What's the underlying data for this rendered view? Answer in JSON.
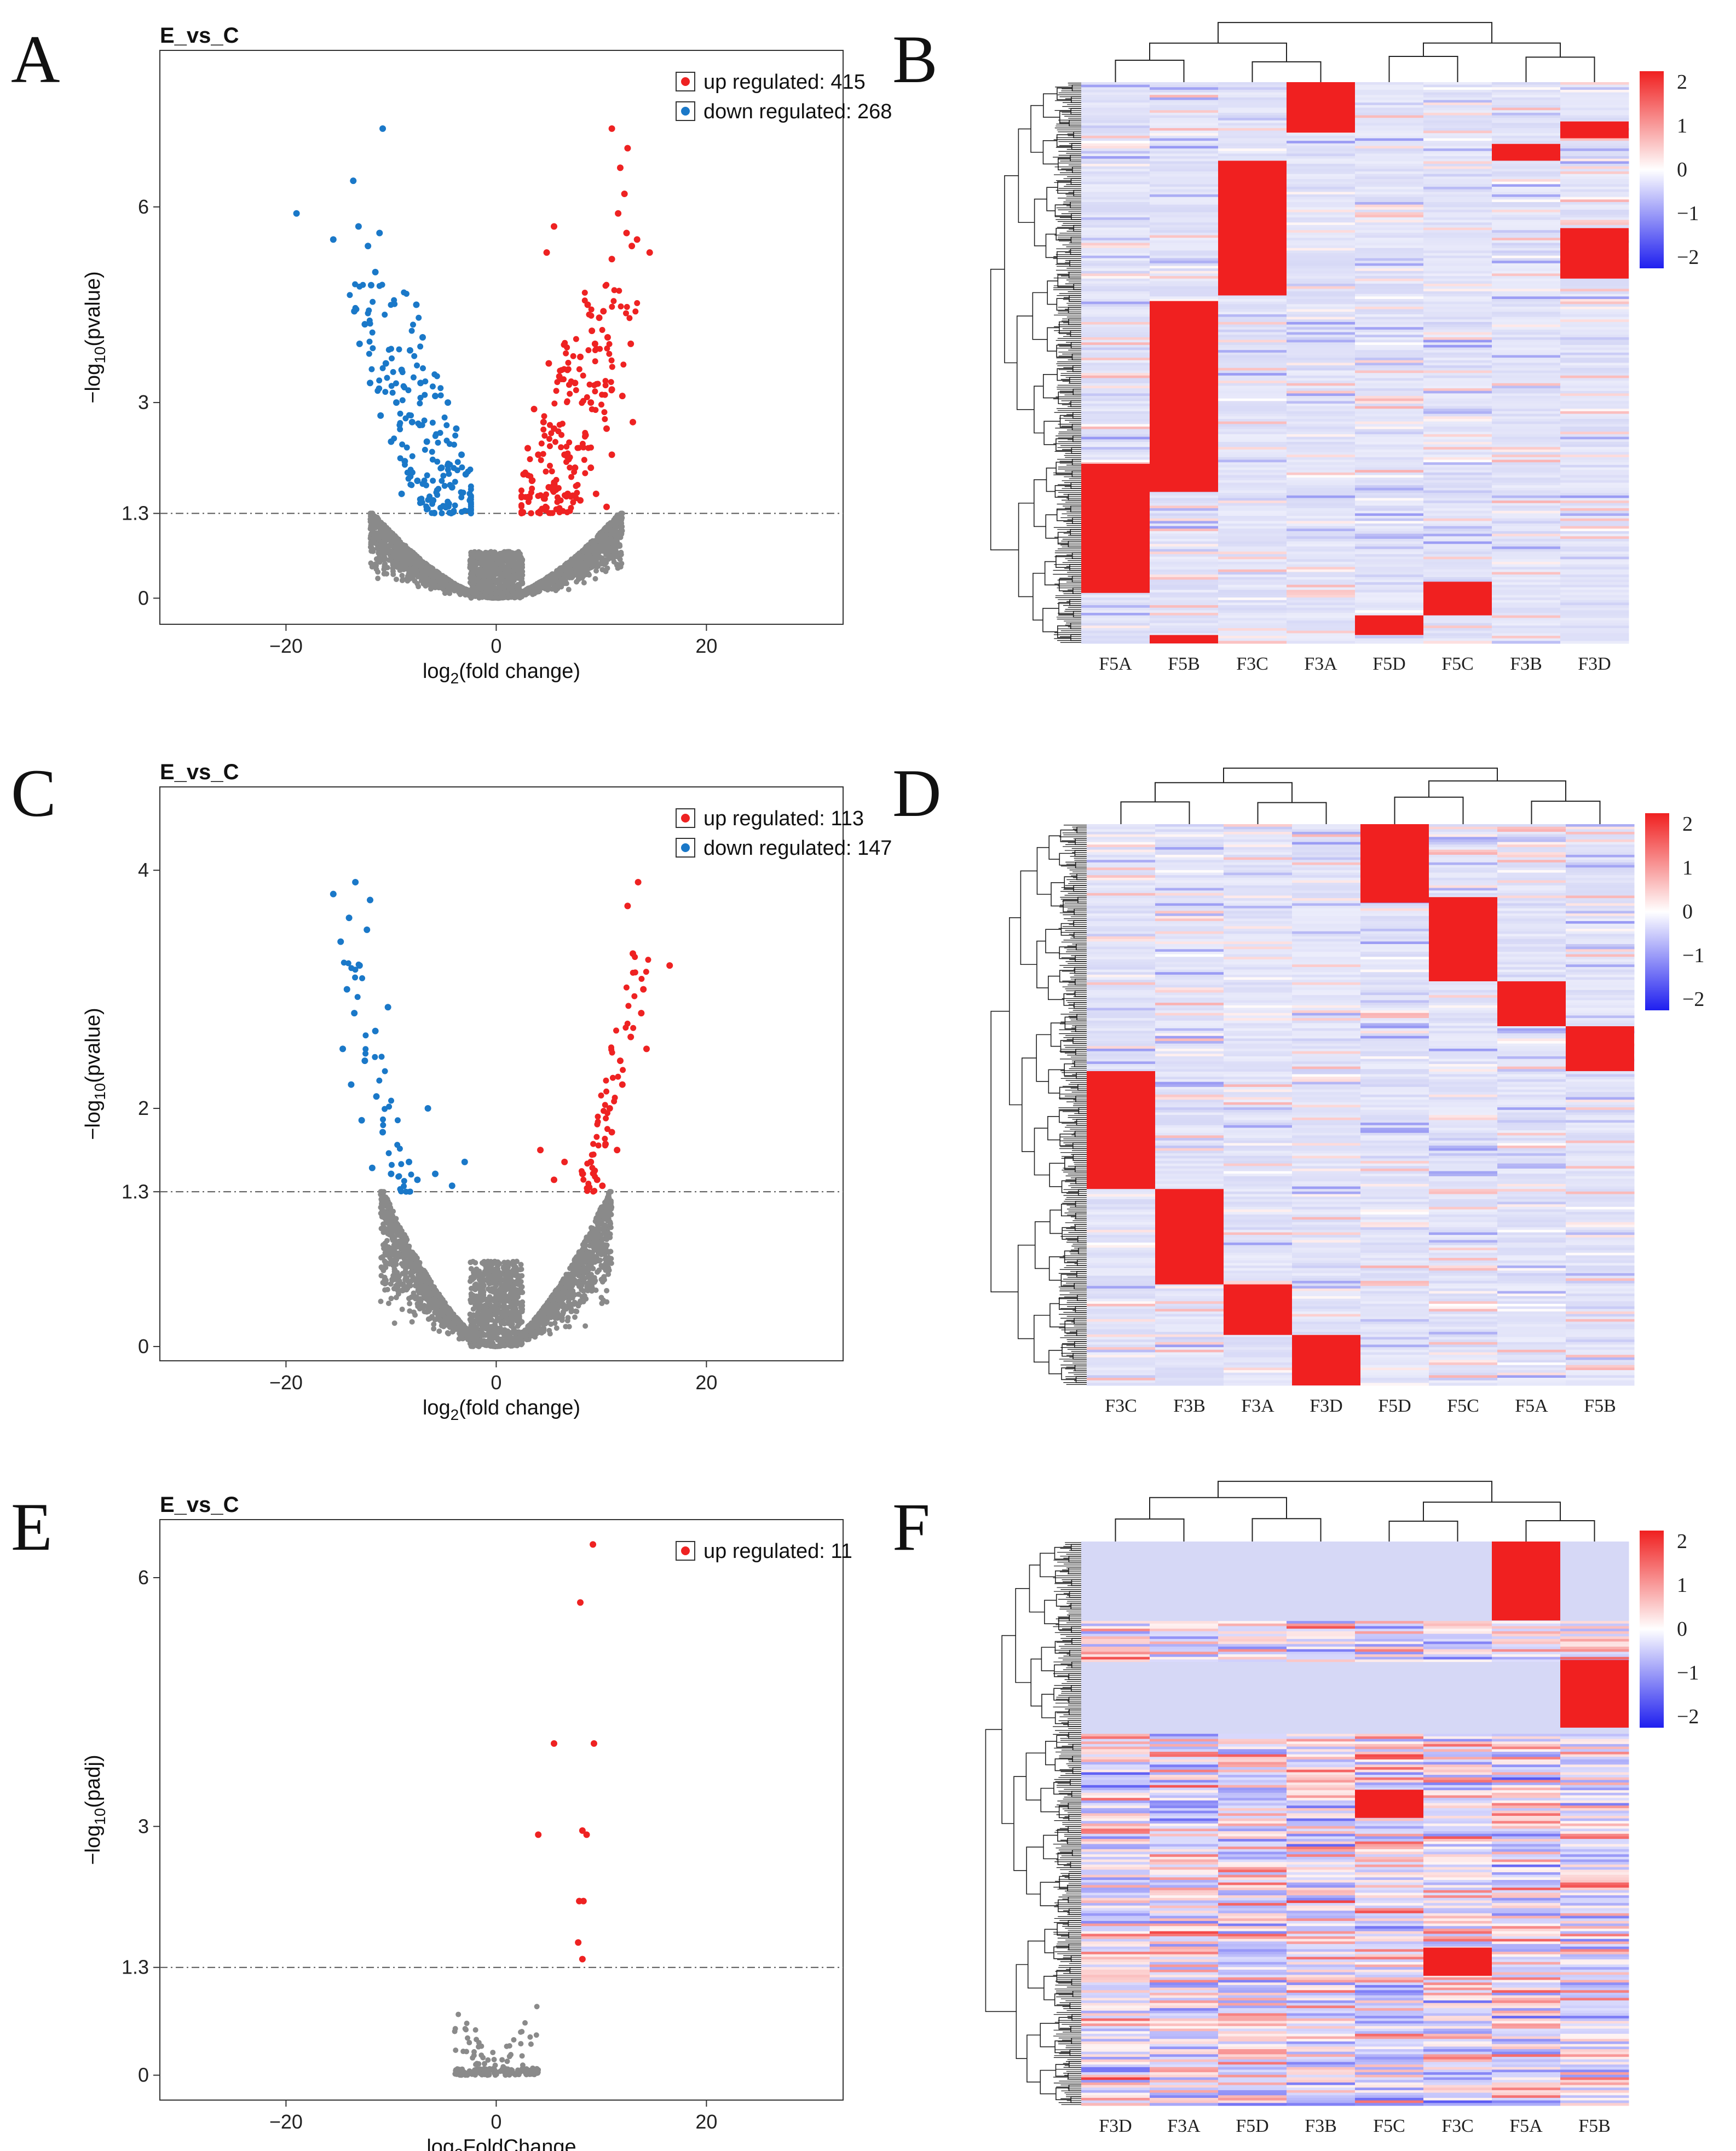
{
  "figure": {
    "panel_letters": [
      "A",
      "B",
      "C",
      "D",
      "E",
      "F"
    ]
  },
  "colors": {
    "up": "#ee2222",
    "down": "#1a78c8",
    "ns": "#8a8a8a",
    "heat_low": "#1f1fef",
    "heat_mid": "#ffffff",
    "heat_high": "#f02020",
    "heat_base": "#d6d8f6"
  },
  "chart_data": [
    {
      "panel": "A",
      "type": "scatter",
      "subtype": "volcano",
      "title": "E_vs_C",
      "xlabel_main": "log",
      "xlabel_sub": "2",
      "xlabel_rest": "(fold change)",
      "ylabel_main": "−log",
      "ylabel_sub": "10",
      "ylabel_rest": "(pvalue)",
      "xlim": [
        -32,
        33
      ],
      "ylim": [
        -0.4,
        8.4
      ],
      "xticks": [
        -20,
        0,
        20
      ],
      "xtick_labels": [
        "−20",
        "0",
        "20"
      ],
      "yticks": [
        0,
        1.3,
        3,
        6
      ],
      "ytick_labels": [
        "0",
        "1.3",
        "3",
        "6"
      ],
      "threshold": 1.3,
      "legend": [
        {
          "label": "up regulated: 415",
          "color": "#ee2222"
        },
        {
          "label": "down regulated: 268",
          "color": "#1a78c8"
        }
      ],
      "sig_points": {
        "up": [
          [
            11,
            7.2
          ],
          [
            12.5,
            6.9
          ],
          [
            11.8,
            6.6
          ],
          [
            12.2,
            6.2
          ],
          [
            11.6,
            5.9
          ],
          [
            5.5,
            5.7
          ],
          [
            12.4,
            5.6
          ],
          [
            13.4,
            5.5
          ],
          [
            12.9,
            5.4
          ],
          [
            14.6,
            5.3
          ],
          [
            11,
            5.2
          ],
          [
            4.8,
            5.3
          ],
          [
            8.7,
            4.5
          ],
          [
            10.2,
            4.4
          ],
          [
            9.8,
            4.3
          ],
          [
            9.1,
            4.1
          ],
          [
            10.6,
            4.0
          ],
          [
            9.4,
            3.9
          ],
          [
            12.8,
            3.9
          ],
          [
            8,
            3.7
          ],
          [
            5,
            3.6
          ],
          [
            6,
            3.4
          ],
          [
            7.5,
            3.3
          ],
          [
            11,
            3.2
          ],
          [
            9,
            3.0
          ],
          [
            12,
            3.1
          ],
          [
            3.6,
            2.9
          ],
          [
            4.5,
            2.7
          ],
          [
            5.5,
            2.6
          ],
          [
            8.5,
            2.5
          ],
          [
            10.5,
            2.6
          ],
          [
            13,
            2.7
          ],
          [
            3,
            2.3
          ],
          [
            4,
            2.2
          ],
          [
            6.5,
            2.2
          ],
          [
            7.5,
            2.0
          ],
          [
            9,
            2.0
          ],
          [
            11,
            2.2
          ],
          [
            2.6,
            1.9
          ],
          [
            3.4,
            1.8
          ],
          [
            5,
            1.7
          ],
          [
            6.8,
            1.6
          ],
          [
            8,
            1.5
          ],
          [
            9.5,
            1.6
          ],
          [
            10.5,
            1.4
          ]
        ],
        "down": [
          [
            -10.8,
            7.2
          ],
          [
            -19,
            5.9
          ],
          [
            -13.6,
            6.4
          ],
          [
            -13.1,
            5.7
          ],
          [
            -15.5,
            5.5
          ],
          [
            -11.1,
            5.6
          ],
          [
            -12.2,
            5.4
          ],
          [
            -11.5,
            5.0
          ],
          [
            -11.9,
            4.8
          ],
          [
            -7.6,
            4.5
          ],
          [
            -13.5,
            4.4
          ],
          [
            -12.5,
            4.2
          ],
          [
            -7,
            4.0
          ],
          [
            -13,
            3.9
          ],
          [
            -8.2,
            3.8
          ],
          [
            -10.5,
            3.6
          ],
          [
            -9,
            3.5
          ],
          [
            -12,
            3.3
          ],
          [
            -7.2,
            3.3
          ],
          [
            -5.8,
            3.1
          ],
          [
            -9.5,
            3.0
          ],
          [
            -4.6,
            3.0
          ],
          [
            -11,
            2.8
          ],
          [
            -8,
            2.7
          ],
          [
            -3.8,
            2.6
          ],
          [
            -10,
            2.4
          ],
          [
            -6.6,
            2.4
          ],
          [
            -3.3,
            2.2
          ],
          [
            -8.7,
            2.1
          ],
          [
            -5.2,
            2.0
          ],
          [
            -2.9,
            1.9
          ],
          [
            -7.5,
            1.8
          ],
          [
            -4.2,
            1.7
          ],
          [
            -9,
            1.6
          ],
          [
            -6,
            1.5
          ],
          [
            -2.5,
            1.5
          ]
        ]
      },
      "ns_shape": {
        "xmax": 12,
        "ymax": 1.3
      }
    },
    {
      "panel": "B",
      "type": "heatmap",
      "columns": [
        "F5A",
        "F5B",
        "F3C",
        "F3A",
        "F5D",
        "F5C",
        "F3B",
        "F3D"
      ],
      "colorbar_ticks": [
        2,
        1,
        0,
        -1,
        -2
      ],
      "colorbar_labels": [
        "2",
        "1",
        "0",
        "−1",
        "−2"
      ],
      "blocks": [
        {
          "col": 3,
          "y0": 0.0,
          "y1": 0.09
        },
        {
          "col": 6,
          "y0": 0.11,
          "y1": 0.14
        },
        {
          "col": 7,
          "y0": 0.07,
          "y1": 0.1
        },
        {
          "col": 2,
          "y0": 0.14,
          "y1": 0.38
        },
        {
          "col": 7,
          "y0": 0.26,
          "y1": 0.35
        },
        {
          "col": 1,
          "y0": 0.39,
          "y1": 0.73
        },
        {
          "col": 0,
          "y0": 0.68,
          "y1": 0.91
        },
        {
          "col": 5,
          "y0": 0.89,
          "y1": 0.95
        },
        {
          "col": 4,
          "y0": 0.95,
          "y1": 0.985
        },
        {
          "col": 1,
          "y0": 0.985,
          "y1": 1.0
        }
      ]
    },
    {
      "panel": "C",
      "type": "scatter",
      "subtype": "volcano",
      "title": "E_vs_C",
      "xlabel_main": "log",
      "xlabel_sub": "2",
      "xlabel_rest": "(fold change)",
      "ylabel_main": "−log",
      "ylabel_sub": "10",
      "ylabel_rest": "(pvalue)",
      "xlim": [
        -32,
        33
      ],
      "ylim": [
        -0.12,
        4.7
      ],
      "xticks": [
        -20,
        0,
        20
      ],
      "xtick_labels": [
        "−20",
        "0",
        "20"
      ],
      "yticks": [
        0,
        1.3,
        2,
        4
      ],
      "ytick_labels": [
        "0",
        "1.3",
        "2",
        "4"
      ],
      "threshold": 1.3,
      "legend": [
        {
          "label": "up regulated: 113",
          "color": "#ee2222"
        },
        {
          "label": "down regulated: 147",
          "color": "#1a78c8"
        }
      ],
      "sig_points": {
        "up": [
          [
            13.5,
            3.9
          ],
          [
            12.5,
            3.7
          ],
          [
            16.5,
            3.2
          ],
          [
            13,
            3.3
          ],
          [
            14,
            3.0
          ],
          [
            13.8,
            2.8
          ],
          [
            12.8,
            2.6
          ],
          [
            14.3,
            2.5
          ],
          [
            11.8,
            2.4
          ],
          [
            12,
            2.2
          ],
          [
            10.8,
            2.0
          ],
          [
            11,
            1.8
          ],
          [
            10.4,
            1.7
          ],
          [
            11.5,
            1.65
          ],
          [
            4.2,
            1.65
          ],
          [
            6.5,
            1.55
          ],
          [
            9,
            1.55
          ],
          [
            8.2,
            1.45
          ],
          [
            5.5,
            1.4
          ],
          [
            9.6,
            1.4
          ],
          [
            10.1,
            1.35
          ]
        ],
        "down": [
          [
            -13.4,
            3.9
          ],
          [
            -15.5,
            3.8
          ],
          [
            -12,
            3.75
          ],
          [
            -14,
            3.6
          ],
          [
            -12.3,
            3.5
          ],
          [
            -14.8,
            3.4
          ],
          [
            -13,
            3.2
          ],
          [
            -14.2,
            3.0
          ],
          [
            -10.3,
            2.85
          ],
          [
            -13.5,
            2.8
          ],
          [
            -11.5,
            2.65
          ],
          [
            -14.6,
            2.5
          ],
          [
            -12.5,
            2.4
          ],
          [
            -13.8,
            2.2
          ],
          [
            -11.4,
            2.1
          ],
          [
            -6.5,
            2.0
          ],
          [
            -12.8,
            1.9
          ],
          [
            -10.8,
            1.8
          ],
          [
            -8.3,
            1.55
          ],
          [
            -3,
            1.55
          ],
          [
            -11.8,
            1.5
          ],
          [
            -10,
            1.45
          ],
          [
            -5.8,
            1.45
          ],
          [
            -7.5,
            1.4
          ],
          [
            -4.2,
            1.35
          ]
        ]
      },
      "ns_shape": {
        "xmax": 11,
        "ymax": 1.3
      }
    },
    {
      "panel": "D",
      "type": "heatmap",
      "columns": [
        "F3C",
        "F3B",
        "F3A",
        "F3D",
        "F5D",
        "F5C",
        "F5A",
        "F5B"
      ],
      "colorbar_ticks": [
        2,
        1,
        0,
        -1,
        -2
      ],
      "colorbar_labels": [
        "2",
        "1",
        "0",
        "−1",
        "−2"
      ],
      "blocks": [
        {
          "col": 4,
          "y0": 0.0,
          "y1": 0.14
        },
        {
          "col": 5,
          "y0": 0.13,
          "y1": 0.28
        },
        {
          "col": 6,
          "y0": 0.28,
          "y1": 0.36
        },
        {
          "col": 7,
          "y0": 0.36,
          "y1": 0.44
        },
        {
          "col": 0,
          "y0": 0.44,
          "y1": 0.65
        },
        {
          "col": 1,
          "y0": 0.65,
          "y1": 0.82
        },
        {
          "col": 2,
          "y0": 0.82,
          "y1": 0.91
        },
        {
          "col": 3,
          "y0": 0.91,
          "y1": 1.0
        }
      ]
    },
    {
      "panel": "E",
      "type": "scatter",
      "subtype": "volcano",
      "title": "E_vs_C",
      "xlabel_main": "log",
      "xlabel_sub": "2",
      "xlabel_rest": "FoldChange",
      "ylabel_main": "−log",
      "ylabel_sub": "10",
      "ylabel_rest": "(padj)",
      "xlim": [
        -32,
        33
      ],
      "ylim": [
        -0.3,
        6.7
      ],
      "xticks": [
        -20,
        0,
        20
      ],
      "xtick_labels": [
        "−20",
        "0",
        "20"
      ],
      "yticks": [
        0,
        1.3,
        3,
        6
      ],
      "ytick_labels": [
        "0",
        "1.3",
        "3",
        "6"
      ],
      "threshold": 1.3,
      "legend": [
        {
          "label": "up regulated: 11",
          "color": "#ee2222"
        }
      ],
      "sig_points": {
        "up": [
          [
            9.2,
            6.4
          ],
          [
            8,
            5.7
          ],
          [
            5.5,
            4.0
          ],
          [
            9.3,
            4.0
          ],
          [
            4,
            2.9
          ],
          [
            8.2,
            2.95
          ],
          [
            8.6,
            2.9
          ],
          [
            7.9,
            2.1
          ],
          [
            8.3,
            2.1
          ],
          [
            7.8,
            1.6
          ],
          [
            8.2,
            1.4
          ]
        ],
        "down": []
      },
      "ns_shape": {
        "xmax": 4,
        "ymax": 0.9,
        "sparse": true
      }
    },
    {
      "panel": "F",
      "type": "heatmap",
      "columns": [
        "F3D",
        "F3A",
        "F5D",
        "F3B",
        "F5C",
        "F3C",
        "F5A",
        "F5B"
      ],
      "colorbar_ticks": [
        2,
        1,
        0,
        -1,
        -2
      ],
      "colorbar_labels": [
        "2",
        "1",
        "0",
        "−1",
        "−2"
      ],
      "blocks": [
        {
          "col": 6,
          "y0": 0.0,
          "y1": 0.14
        },
        {
          "col": 7,
          "y0": 0.21,
          "y1": 0.33
        },
        {
          "col": 4,
          "y0": 0.44,
          "y1": 0.49
        },
        {
          "col": 5,
          "y0": 0.72,
          "y1": 0.77
        }
      ]
    }
  ]
}
